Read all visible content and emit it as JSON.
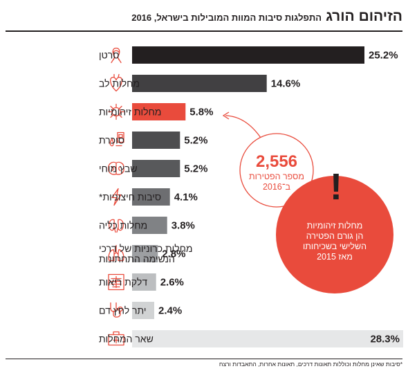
{
  "header": {
    "title": "הזיהום הורג",
    "subtitle": "התפלגות סיבות המוות המובילות בישראל, 2016"
  },
  "footnote": "*סיבות שאינן מחלות וכוללות תאונות דרכים, תאונות אחרות, התאבדות ורצח",
  "annotation": {
    "number": "2,556",
    "line1": "מספר הפטירות",
    "line2": "ב־2016"
  },
  "callout": {
    "symbol": "!",
    "lines": [
      "מחלות זיהומיות",
      "הן גורם הפטירה",
      "השלישי בשכיחותו",
      "מאז 2015"
    ]
  },
  "colors": {
    "highlight": "#e94b3c",
    "icon": "#e94b3c",
    "text": "#231f20"
  },
  "chart_data": {
    "type": "bar",
    "orientation": "horizontal",
    "unit": "%",
    "categories": [
      {
        "label": "סרטן",
        "value": 25.2,
        "value_label": "25.2%",
        "color": "#231f20",
        "icon": "ribbon-icon"
      },
      {
        "label": "מחלות לב",
        "value": 14.6,
        "value_label": "14.6%",
        "color": "#414042",
        "icon": "heart-organ-icon"
      },
      {
        "label": "מחלות זיהומיות",
        "value": 5.8,
        "value_label": "5.8%",
        "color": "#e94b3c",
        "icon": "virus-icon",
        "highlight": true
      },
      {
        "label": "סוכרת",
        "value": 5.2,
        "value_label": "5.2%",
        "color": "#4d4d4f",
        "icon": "glucose-meter-icon"
      },
      {
        "label": "שבץ מוחי",
        "value": 5.2,
        "value_label": "5.2%",
        "color": "#58595b",
        "icon": "brain-icon"
      },
      {
        "label": "סיבות חיצוניות*",
        "value": 4.1,
        "value_label": "4.1%",
        "color": "#6d6e71",
        "icon": "lightning-icon"
      },
      {
        "label": "מחלות כליה",
        "value": 3.8,
        "value_label": "3.8%",
        "color": "#808285",
        "icon": "kidneys-icon"
      },
      {
        "label": "מחלות כרוניות של דרכי\nהנשימה התחתונות",
        "value": 2.8,
        "value_label": "2.8%",
        "color": "#9d9fa2",
        "icon": "lungs-icon"
      },
      {
        "label": "דלקת ריאות",
        "value": 2.6,
        "value_label": "2.6%",
        "color": "#bcbec0",
        "icon": "xray-icon"
      },
      {
        "label": "יתר לחץ דם",
        "value": 2.4,
        "value_label": "2.4%",
        "color": "#d1d3d4",
        "icon": "stethoscope-icon"
      },
      {
        "label": "שאר המחלות",
        "value": 28.3,
        "value_label": "28.3%",
        "color": "#e6e7e8",
        "icon": "medical-kit-icon",
        "label_inside": true
      }
    ],
    "grid": false,
    "legend": "none"
  }
}
